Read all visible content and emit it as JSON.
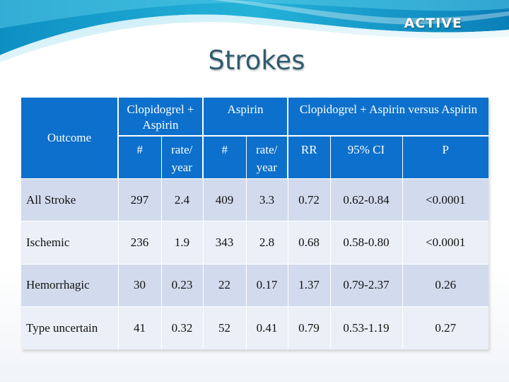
{
  "slide": {
    "brand": "ACTIVE",
    "title": "Strokes"
  },
  "table": {
    "outcome_header": "Outcome",
    "groups": [
      "Clopidogrel + Aspirin",
      "Aspirin",
      "Clopidogrel + Aspirin versus Aspirin"
    ],
    "subheaders": [
      "#",
      "rate/ year",
      "#",
      "rate/ year",
      "RR",
      "95% CI",
      "P"
    ],
    "rows": [
      [
        "All Stroke",
        "297",
        "2.4",
        "409",
        "3.3",
        "0.72",
        "0.62-0.84",
        "<0.0001"
      ],
      [
        "Ischemic",
        "236",
        "1.9",
        "343",
        "2.8",
        "0.68",
        "0.58-0.80",
        "<0.0001"
      ],
      [
        "Hemorrhagic",
        "30",
        "0.23",
        "22",
        "0.17",
        "1.37",
        "0.79-2.37",
        "0.26"
      ],
      [
        "Type uncertain",
        "41",
        "0.32",
        "52",
        "0.41",
        "0.79",
        "0.53-1.19",
        "0.27"
      ]
    ]
  },
  "colors": {
    "header_blue": "#0d70cc",
    "row_dark": "#d2dbed",
    "row_light": "#ebeff7",
    "title": "#2f5b6e"
  }
}
